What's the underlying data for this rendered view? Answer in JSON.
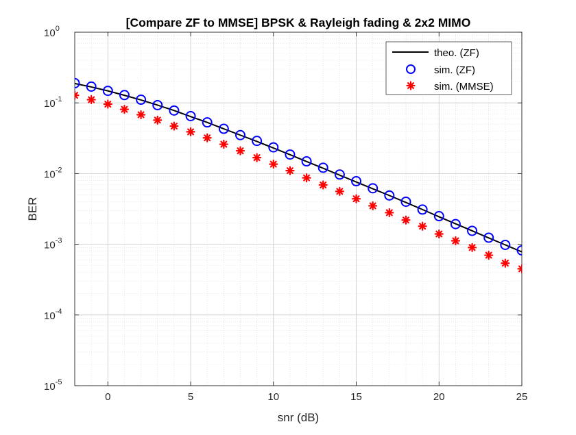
{
  "chart_data": {
    "type": "line",
    "title": "[Compare ZF to MMSE] BPSK & Rayleigh fading & 2x2 MIMO",
    "xlabel": "snr (dB)",
    "ylabel": "BER",
    "xlim": [
      -2,
      25
    ],
    "ylim": [
      1e-05,
      1
    ],
    "yscale": "log",
    "grid": true,
    "minor_grid": true,
    "legend_position": "top-right",
    "x_ticks": [
      0,
      5,
      10,
      15,
      20,
      25
    ],
    "x_tick_labels": [
      "0",
      "5",
      "10",
      "15",
      "20",
      "25"
    ],
    "y_ticks": [
      1e-05,
      0.0001,
      0.001,
      0.01,
      0.1,
      1
    ],
    "y_tick_labels": [
      {
        "base": "10",
        "exp": "-5"
      },
      {
        "base": "10",
        "exp": "-4"
      },
      {
        "base": "10",
        "exp": "-3"
      },
      {
        "base": "10",
        "exp": "-2"
      },
      {
        "base": "10",
        "exp": "-1"
      },
      {
        "base": "10",
        "exp": "0"
      }
    ],
    "x": [
      -2,
      -1,
      0,
      1,
      2,
      3,
      4,
      5,
      6,
      7,
      8,
      9,
      10,
      11,
      12,
      13,
      14,
      15,
      16,
      17,
      18,
      19,
      20,
      21,
      22,
      23,
      24,
      25
    ],
    "series": [
      {
        "name": "theo. (ZF)",
        "style": "line",
        "color": "#000000",
        "values": [
          0.188,
          0.168,
          0.148,
          0.128,
          0.11,
          0.093,
          0.078,
          0.064,
          0.053,
          0.043,
          0.035,
          0.0285,
          0.023,
          0.0185,
          0.0148,
          0.0119,
          0.0095,
          0.0076,
          0.0061,
          0.0049,
          0.0039,
          0.0031,
          0.00245,
          0.00195,
          0.00155,
          0.00123,
          0.00098,
          0.00078
        ]
      },
      {
        "name": "sim. (ZF)",
        "style": "marker-circle",
        "color": "#0000ff",
        "values": [
          0.19,
          0.17,
          0.148,
          0.129,
          0.111,
          0.093,
          0.078,
          0.065,
          0.053,
          0.043,
          0.035,
          0.029,
          0.0235,
          0.0186,
          0.0149,
          0.0121,
          0.0097,
          0.0078,
          0.0062,
          0.0049,
          0.004,
          0.0031,
          0.0025,
          0.00193,
          0.00155,
          0.00124,
          0.00098,
          0.00082
        ]
      },
      {
        "name": "sim. (MMSE)",
        "style": "marker-asterisk",
        "color": "#ff0000",
        "values": [
          0.128,
          0.111,
          0.096,
          0.081,
          0.068,
          0.057,
          0.047,
          0.039,
          0.032,
          0.026,
          0.021,
          0.0168,
          0.0136,
          0.011,
          0.0087,
          0.0069,
          0.0056,
          0.0044,
          0.0035,
          0.0028,
          0.0022,
          0.0018,
          0.0014,
          0.00112,
          0.0009,
          0.0007,
          0.00054,
          0.00045
        ]
      }
    ]
  }
}
